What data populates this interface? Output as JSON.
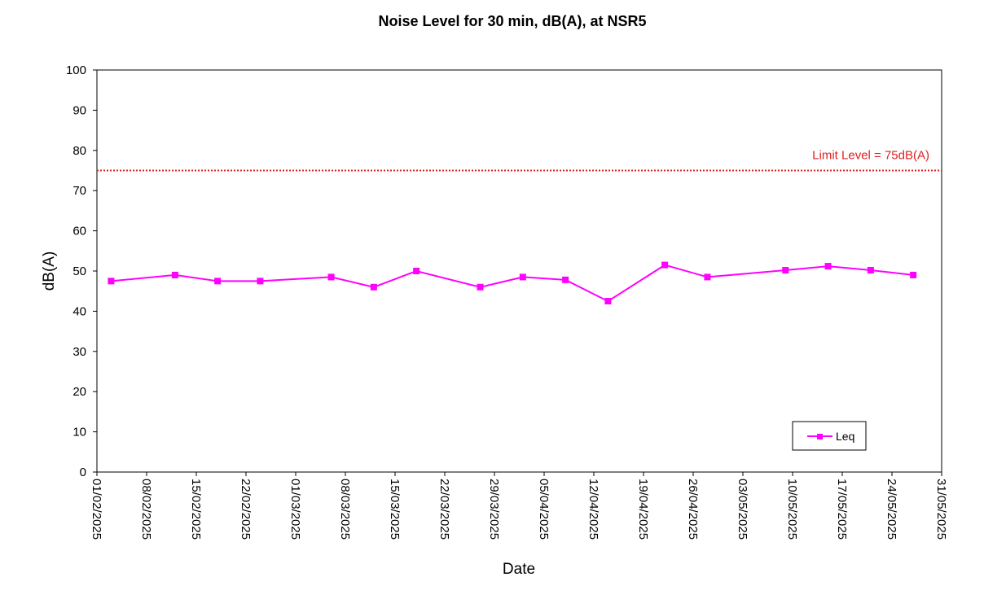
{
  "colors": {
    "series": "#ff00ff",
    "limit": "#e02020",
    "axis": "#000000"
  },
  "chart_data": {
    "type": "line",
    "title": "Noise Level for 30 min, dB(A), at NSR5",
    "xlabel": "Date",
    "ylabel": "dB(A)",
    "ylim": [
      0,
      100
    ],
    "yticks": [
      0,
      10,
      20,
      30,
      40,
      50,
      60,
      70,
      80,
      90,
      100
    ],
    "xlim": [
      "2025-02-01",
      "2025-05-31"
    ],
    "xtick_labels": [
      "01/02/2025",
      "08/02/2025",
      "15/02/2025",
      "22/02/2025",
      "01/03/2025",
      "08/03/2025",
      "15/03/2025",
      "22/03/2025",
      "29/03/2025",
      "05/04/2025",
      "12/04/2025",
      "19/04/2025",
      "26/04/2025",
      "03/05/2025",
      "10/05/2025",
      "17/05/2025",
      "24/05/2025",
      "31/05/2025"
    ],
    "grid": false,
    "legend_position": "bottom-right",
    "series": [
      {
        "name": "Leq",
        "x": [
          "2025-02-03",
          "2025-02-12",
          "2025-02-18",
          "2025-02-24",
          "2025-03-06",
          "2025-03-12",
          "2025-03-18",
          "2025-03-27",
          "2025-04-02",
          "2025-04-08",
          "2025-04-14",
          "2025-04-22",
          "2025-04-28",
          "2025-05-09",
          "2025-05-15",
          "2025-05-21",
          "2025-05-27"
        ],
        "values": [
          47.5,
          49.0,
          47.5,
          47.5,
          48.5,
          46.0,
          50.0,
          46.0,
          48.5,
          47.8,
          42.5,
          51.5,
          48.5,
          50.2,
          51.2,
          50.2,
          49.0
        ]
      }
    ],
    "limit_line": {
      "value": 75,
      "label": "Limit Level = 75dB(A)"
    }
  }
}
